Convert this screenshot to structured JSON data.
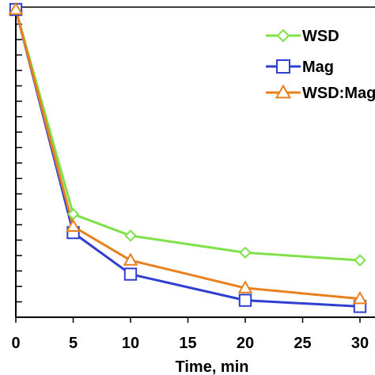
{
  "chart_data": {
    "type": "line",
    "title": "",
    "xlabel": "Time, min",
    "ylabel": "",
    "x": [
      0,
      5,
      10,
      20,
      30
    ],
    "xlim": [
      0,
      30
    ],
    "xticks": [
      "0",
      "5",
      "10",
      "15",
      "20",
      "25",
      "30"
    ],
    "ylim": [
      0,
      100
    ],
    "grid": false,
    "legend_position": "top-right",
    "series": [
      {
        "name": "WSD",
        "color": "#7fe04a",
        "marker": "diamond",
        "values": [
          100,
          33.5,
          26.5,
          21,
          18.5
        ]
      },
      {
        "name": "Mag",
        "color": "#2f3fd0",
        "marker": "square",
        "values": [
          100,
          27.5,
          14,
          5.5,
          3.5
        ]
      },
      {
        "name": "WSD:Mag",
        "color": "#e8801e",
        "marker": "triangle",
        "values": [
          100,
          29.5,
          18.5,
          9.5,
          6
        ]
      }
    ]
  }
}
